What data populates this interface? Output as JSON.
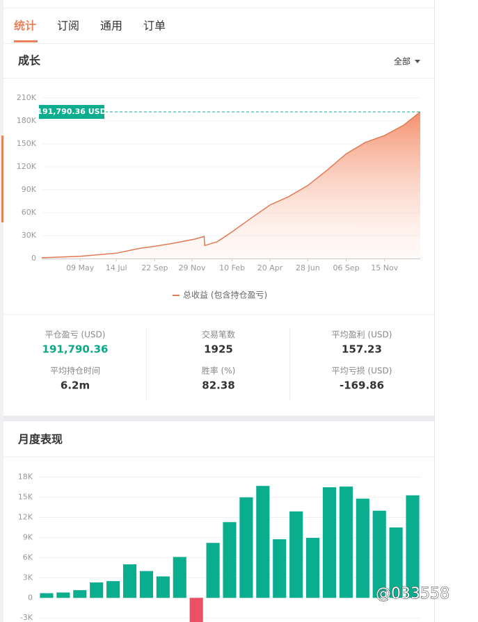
{
  "tabs": [
    "统计",
    "订阅",
    "通用",
    "订单"
  ],
  "growth": {
    "title": "成长",
    "filter": "全部",
    "chart_data": {
      "type": "line",
      "x": [
        0,
        70,
        136,
        180,
        206,
        240,
        280,
        296,
        297,
        320,
        347,
        380,
        416,
        450,
        485,
        520,
        555,
        590,
        625,
        660,
        690
      ],
      "series": [
        {
          "name": "总收益 (包含持仓盈亏)",
          "color": "#e07a55",
          "values": [
            1000,
            3000,
            7000,
            13500,
            16000,
            20000,
            25500,
            29000,
            17000,
            22000,
            35000,
            52000,
            70000,
            81000,
            95500,
            115500,
            137000,
            152000,
            161000,
            174500,
            191790.36
          ]
        }
      ],
      "annotation": {
        "value": 191790.36,
        "label": "191,790.36 USD"
      },
      "xlim": [
        0,
        690
      ],
      "xticks": [
        {
          "value": 70,
          "label": "09 May"
        },
        {
          "value": 136,
          "label": "14 Jul"
        },
        {
          "value": 206,
          "label": "22 Sep"
        },
        {
          "value": 274,
          "label": "29 Nov"
        },
        {
          "value": 347,
          "label": "10 Feb"
        },
        {
          "value": 416,
          "label": "20 Apr"
        },
        {
          "value": 485,
          "label": "28 Jun"
        },
        {
          "value": 555,
          "label": "06 Sep"
        },
        {
          "value": 625,
          "label": "15 Nov"
        }
      ],
      "ylim": [
        0,
        210000
      ],
      "yticks": [
        0,
        {
          "value": 30000,
          "label": "30K"
        },
        {
          "value": 60000,
          "label": "60K"
        },
        {
          "value": 90000,
          "label": "90K"
        },
        {
          "value": 120000,
          "label": "120K"
        },
        {
          "value": 150000,
          "label": "150K"
        },
        {
          "value": 180000,
          "label": "180K"
        },
        {
          "value": 210000,
          "label": "210K"
        }
      ],
      "grid": true
    }
  },
  "stats": [
    {
      "label": "平仓盈亏 (USD)",
      "value": "191,790.36"
    },
    {
      "label": "交易笔数",
      "value": "1925"
    },
    {
      "label": "平均盈利 (USD)",
      "value": "157.23"
    },
    {
      "label": "平均持仓时间",
      "value": "6.2m"
    },
    {
      "label": "胜率 (%)",
      "value": "82.38"
    },
    {
      "label": "平均亏损 (USD)",
      "value": "-169.86"
    }
  ],
  "monthly": {
    "title": "月度表现",
    "chart_data": {
      "type": "bar",
      "categories": [
        null,
        null,
        null,
        null,
        null,
        null,
        null,
        null,
        null,
        null,
        null,
        null,
        null,
        null,
        null,
        null,
        null,
        null,
        null,
        null,
        null,
        null,
        null
      ],
      "values": [
        700,
        800,
        1150,
        2300,
        2500,
        5000,
        4000,
        3200,
        6100,
        -3800,
        8200,
        11300,
        15000,
        16700,
        8750,
        12900,
        8950,
        16500,
        16600,
        14800,
        13000,
        10500,
        15300
      ],
      "color": "#0aae8e",
      "negative_color": "#ec5065",
      "ylim": [
        -3600,
        19000
      ],
      "yticks": [
        {
          "value": -3000,
          "label": "-3K"
        },
        0,
        {
          "value": 3000,
          "label": "3K"
        },
        {
          "value": 6000,
          "label": "6K"
        },
        {
          "value": 9000,
          "label": "9K"
        },
        {
          "value": 12000,
          "label": "12K"
        },
        {
          "value": 15000,
          "label": "15K"
        },
        {
          "value": 18000,
          "label": "18K"
        }
      ],
      "grid": true
    }
  },
  "watermark": "@033558"
}
